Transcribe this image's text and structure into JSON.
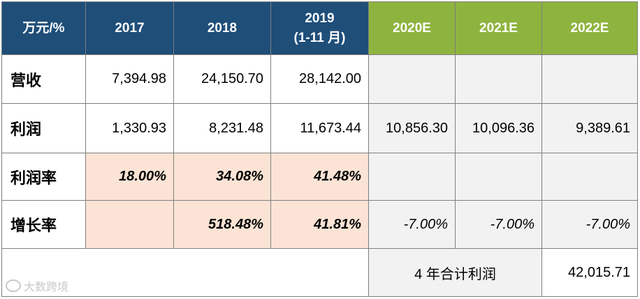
{
  "header": {
    "unit": "万元/%",
    "y2017": "2017",
    "y2018": "2018",
    "y2019": "2019",
    "y2019_note": "(1-11 月)",
    "y2020": "2020E",
    "y2021": "2021E",
    "y2022": "2022E"
  },
  "rows": {
    "revenue": {
      "label": "营收",
      "y2017": "7,394.98",
      "y2018": "24,150.70",
      "y2019": "28,142.00"
    },
    "profit": {
      "label": "利润",
      "y2017": "1,330.93",
      "y2018": "8,231.48",
      "y2019": "11,673.44",
      "y2020": "10,856.30",
      "y2021": "10,096.36",
      "y2022": "9,389.61"
    },
    "margin": {
      "label": "利润率",
      "y2017": "18.00%",
      "y2018": "34.08%",
      "y2019": "41.48%"
    },
    "growth": {
      "label": "增长率",
      "y2018": "518.48%",
      "y2019": "41.81%",
      "y2020": "-7.00%",
      "y2021": "-7.00%",
      "y2022": "-7.00%"
    }
  },
  "total": {
    "label": "4 年合计利润",
    "value": "42,015.71"
  },
  "watermark": {
    "text": "大数跨境",
    "icon": "camera-logo-icon"
  },
  "colors": {
    "header_blue": "#1f4e79",
    "header_green": "#8eb43f",
    "peach": "#fbe4d5",
    "grey": "#f2f2f2"
  }
}
